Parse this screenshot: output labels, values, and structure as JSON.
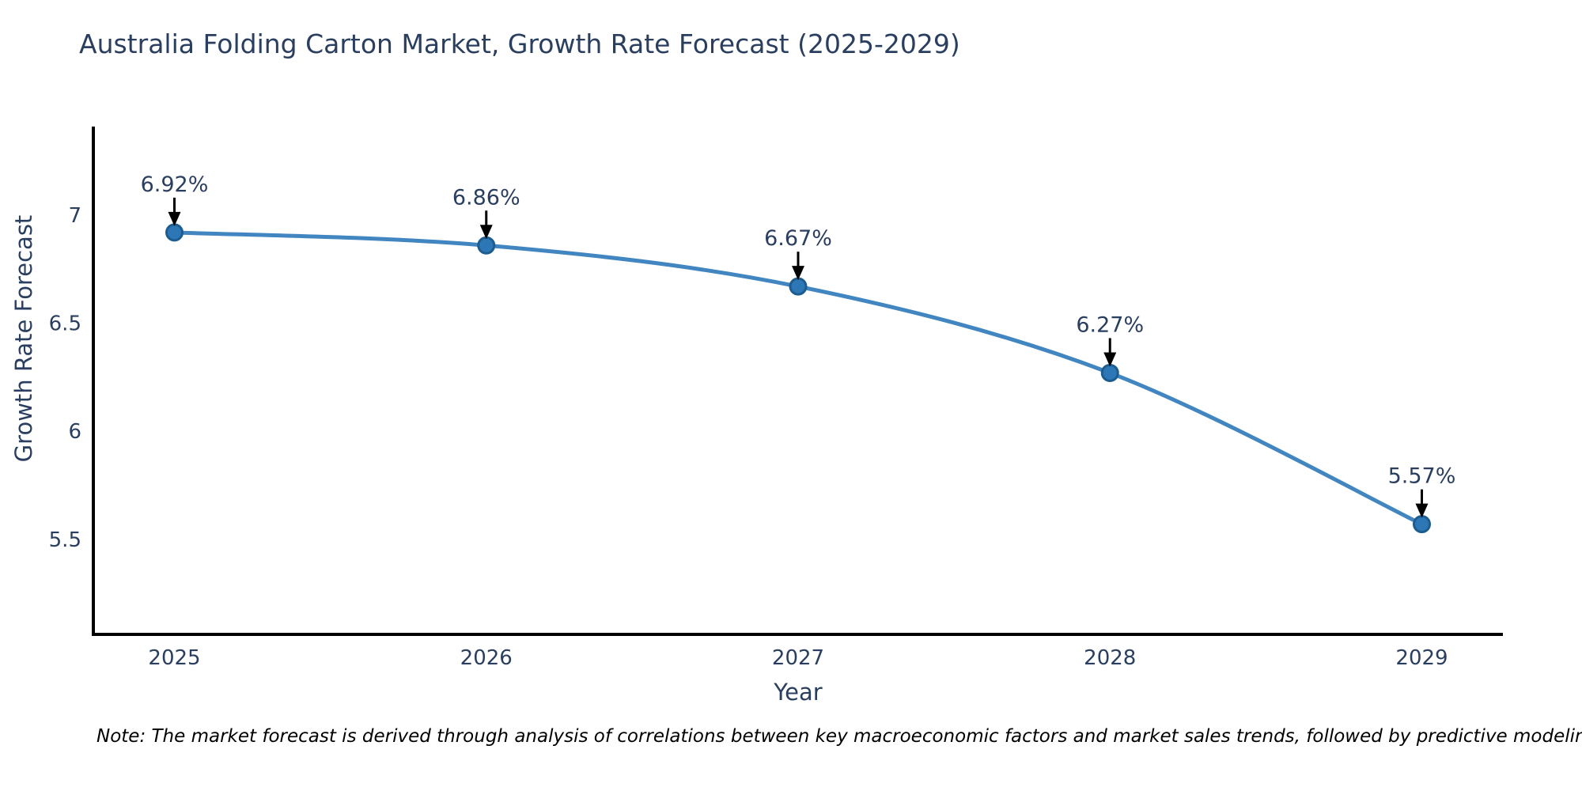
{
  "page": {
    "background": "#ffffff"
  },
  "chart_data": {
    "type": "line",
    "title": "Australia Folding Carton Market, Growth Rate Forecast (2025-2029)",
    "xlabel": "Year",
    "ylabel": "Growth Rate Forecast",
    "x": [
      2025,
      2026,
      2027,
      2028,
      2029
    ],
    "values": [
      6.92,
      6.86,
      6.67,
      6.27,
      5.57
    ],
    "point_labels": [
      "6.92%",
      "6.86%",
      "6.67%",
      "6.27%",
      "5.57%"
    ],
    "series": [
      {
        "name": "Growth Rate Forecast",
        "values": [
          6.92,
          6.86,
          6.67,
          6.27,
          5.57
        ]
      }
    ],
    "xtick_labels": [
      "2025",
      "2026",
      "2027",
      "2028",
      "2029"
    ],
    "yticks": [
      5.5,
      6,
      6.5,
      7
    ],
    "ytick_labels": [
      "5.5",
      "6",
      "6.5",
      "7"
    ],
    "xlim": [
      2024.74,
      2029.26
    ],
    "ylim": [
      5.06,
      7.41
    ],
    "grid": false,
    "legend": "none",
    "line_shape": "spline",
    "annotations_have_arrows": true,
    "colors": {
      "line": "#4186c0",
      "marker_fill": "#2e77b6",
      "marker_edge": "#1d5c8e",
      "axis_line": "#000000",
      "text": "#2a3f5f",
      "annotation_arrow": "#000000",
      "note_text": "#000000"
    },
    "note": "Note: The market forecast is derived through analysis of correlations between key macroeconomic factors and market sales trends, followed by predictive modeling to project future sales"
  }
}
